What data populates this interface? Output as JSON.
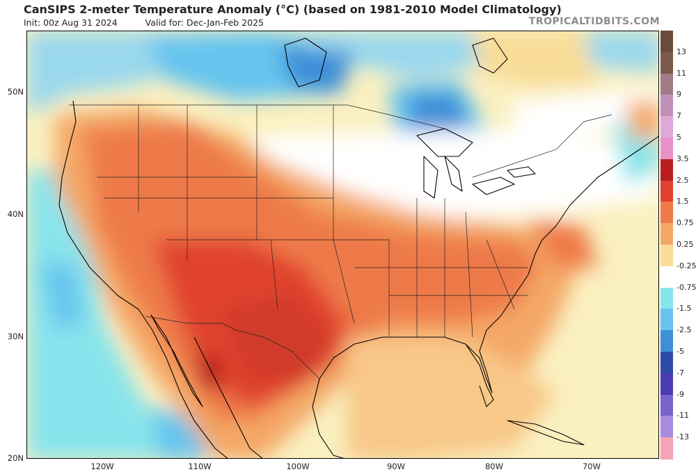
{
  "header": {
    "title": "CanSIPS 2-meter Temperature Anomaly (°C) (based on 1981-2010 Model Climatology)",
    "init": "Init: 00z Aug 31 2024",
    "valid": "Valid for: Dec-Jan-Feb 2025",
    "watermark": "TROPICALTIDBITS.COM"
  },
  "map": {
    "lat_labels": [
      "50N",
      "40N",
      "30N",
      "20N"
    ],
    "lon_labels": [
      "120W",
      "110W",
      "100W",
      "90W",
      "80W",
      "70W"
    ],
    "extent": {
      "lon": [
        -128,
        -64
      ],
      "lat": [
        20,
        55
      ]
    }
  },
  "legend": {
    "labels": [
      "13",
      "11",
      "9",
      "7",
      "5",
      "3.5",
      "2.5",
      "1.5",
      "0.75",
      "0.25",
      "-0.25",
      "-0.75",
      "-1.5",
      "-2.5",
      "-5",
      "-7",
      "-9",
      "-11",
      "-13"
    ],
    "colors": [
      "#7a5a4a",
      "#a07a84",
      "#c090b8",
      "#e0a8d8",
      "#e890c8",
      "#b81e1e",
      "#e0422e",
      "#ee7a4a",
      "#f4a868",
      "#f8dc98",
      "#ffffff",
      "#88e4ec",
      "#66c4ee",
      "#3e8ed8",
      "#2e4aa8",
      "#4c3ab4",
      "#7a62cc",
      "#a88ae0",
      "#f4a4b4"
    ]
  }
}
